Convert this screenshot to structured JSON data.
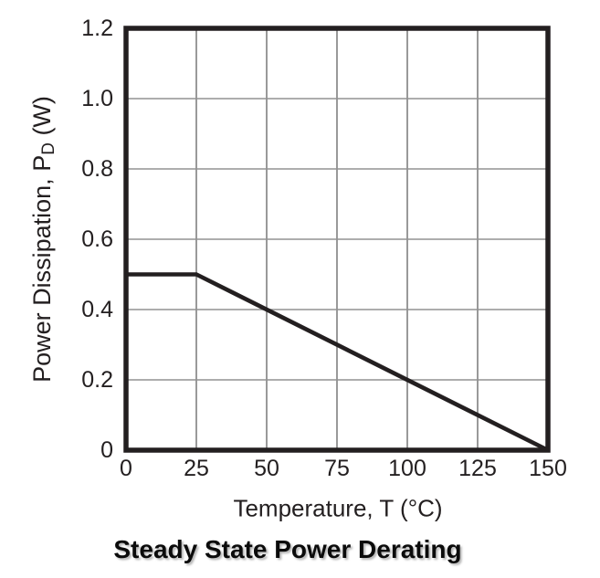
{
  "colors": {
    "line": "#231f20",
    "frame": "#231f20",
    "grid_vertical": "#6e6e6e",
    "grid_horizontal": "#929292",
    "text": "#231f20",
    "background": "#ffffff"
  },
  "chart_data": {
    "type": "line",
    "title": "Steady State Power Derating",
    "xlabel": "Temperature, T (°C)",
    "ylabel": "Power Dissipation, PD (W)",
    "ylabel_parts": {
      "prefix": "Power Dissipation, P",
      "sub": "D",
      "suffix": " (W)"
    },
    "xlim": [
      0,
      150
    ],
    "ylim": [
      0,
      1.2
    ],
    "xticks": [
      0,
      25,
      50,
      75,
      100,
      125,
      150
    ],
    "yticks": [
      0,
      0.2,
      0.4,
      0.6,
      0.8,
      1.0,
      1.2
    ],
    "xtick_labels": [
      "0",
      "25",
      "50",
      "75",
      "100",
      "125",
      "150"
    ],
    "ytick_labels": [
      "0",
      "0.2",
      "0.4",
      "0.6",
      "0.8",
      "1.0",
      "1.2"
    ],
    "grid": true,
    "legend": "none",
    "series": [
      {
        "name": "steady-state-power-derating",
        "points": [
          [
            0,
            0.5
          ],
          [
            25,
            0.5
          ],
          [
            150,
            0
          ]
        ]
      }
    ]
  }
}
